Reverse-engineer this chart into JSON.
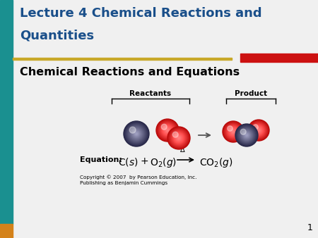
{
  "bg_color": "#f0f0f0",
  "left_bar_color": "#1a9090",
  "left_bar_bottom_color": "#d4821a",
  "top_title_line1": "Lecture 4 Chemical Reactions and",
  "top_title_line2": "Quantities",
  "top_title_color": "#1a4f8a",
  "subtitle": "Chemical Reactions and Equations",
  "subtitle_color": "#000000",
  "red_bar_color": "#cc1111",
  "gold_line_color": "#c8a828",
  "page_number": "1",
  "copyright_text": "Copyright © 2007  by Pearson Education, Inc.\nPublishing as Benjamin Cummings",
  "reactants_label": "Reactants",
  "product_label": "Product",
  "equation_label": "Equation:"
}
